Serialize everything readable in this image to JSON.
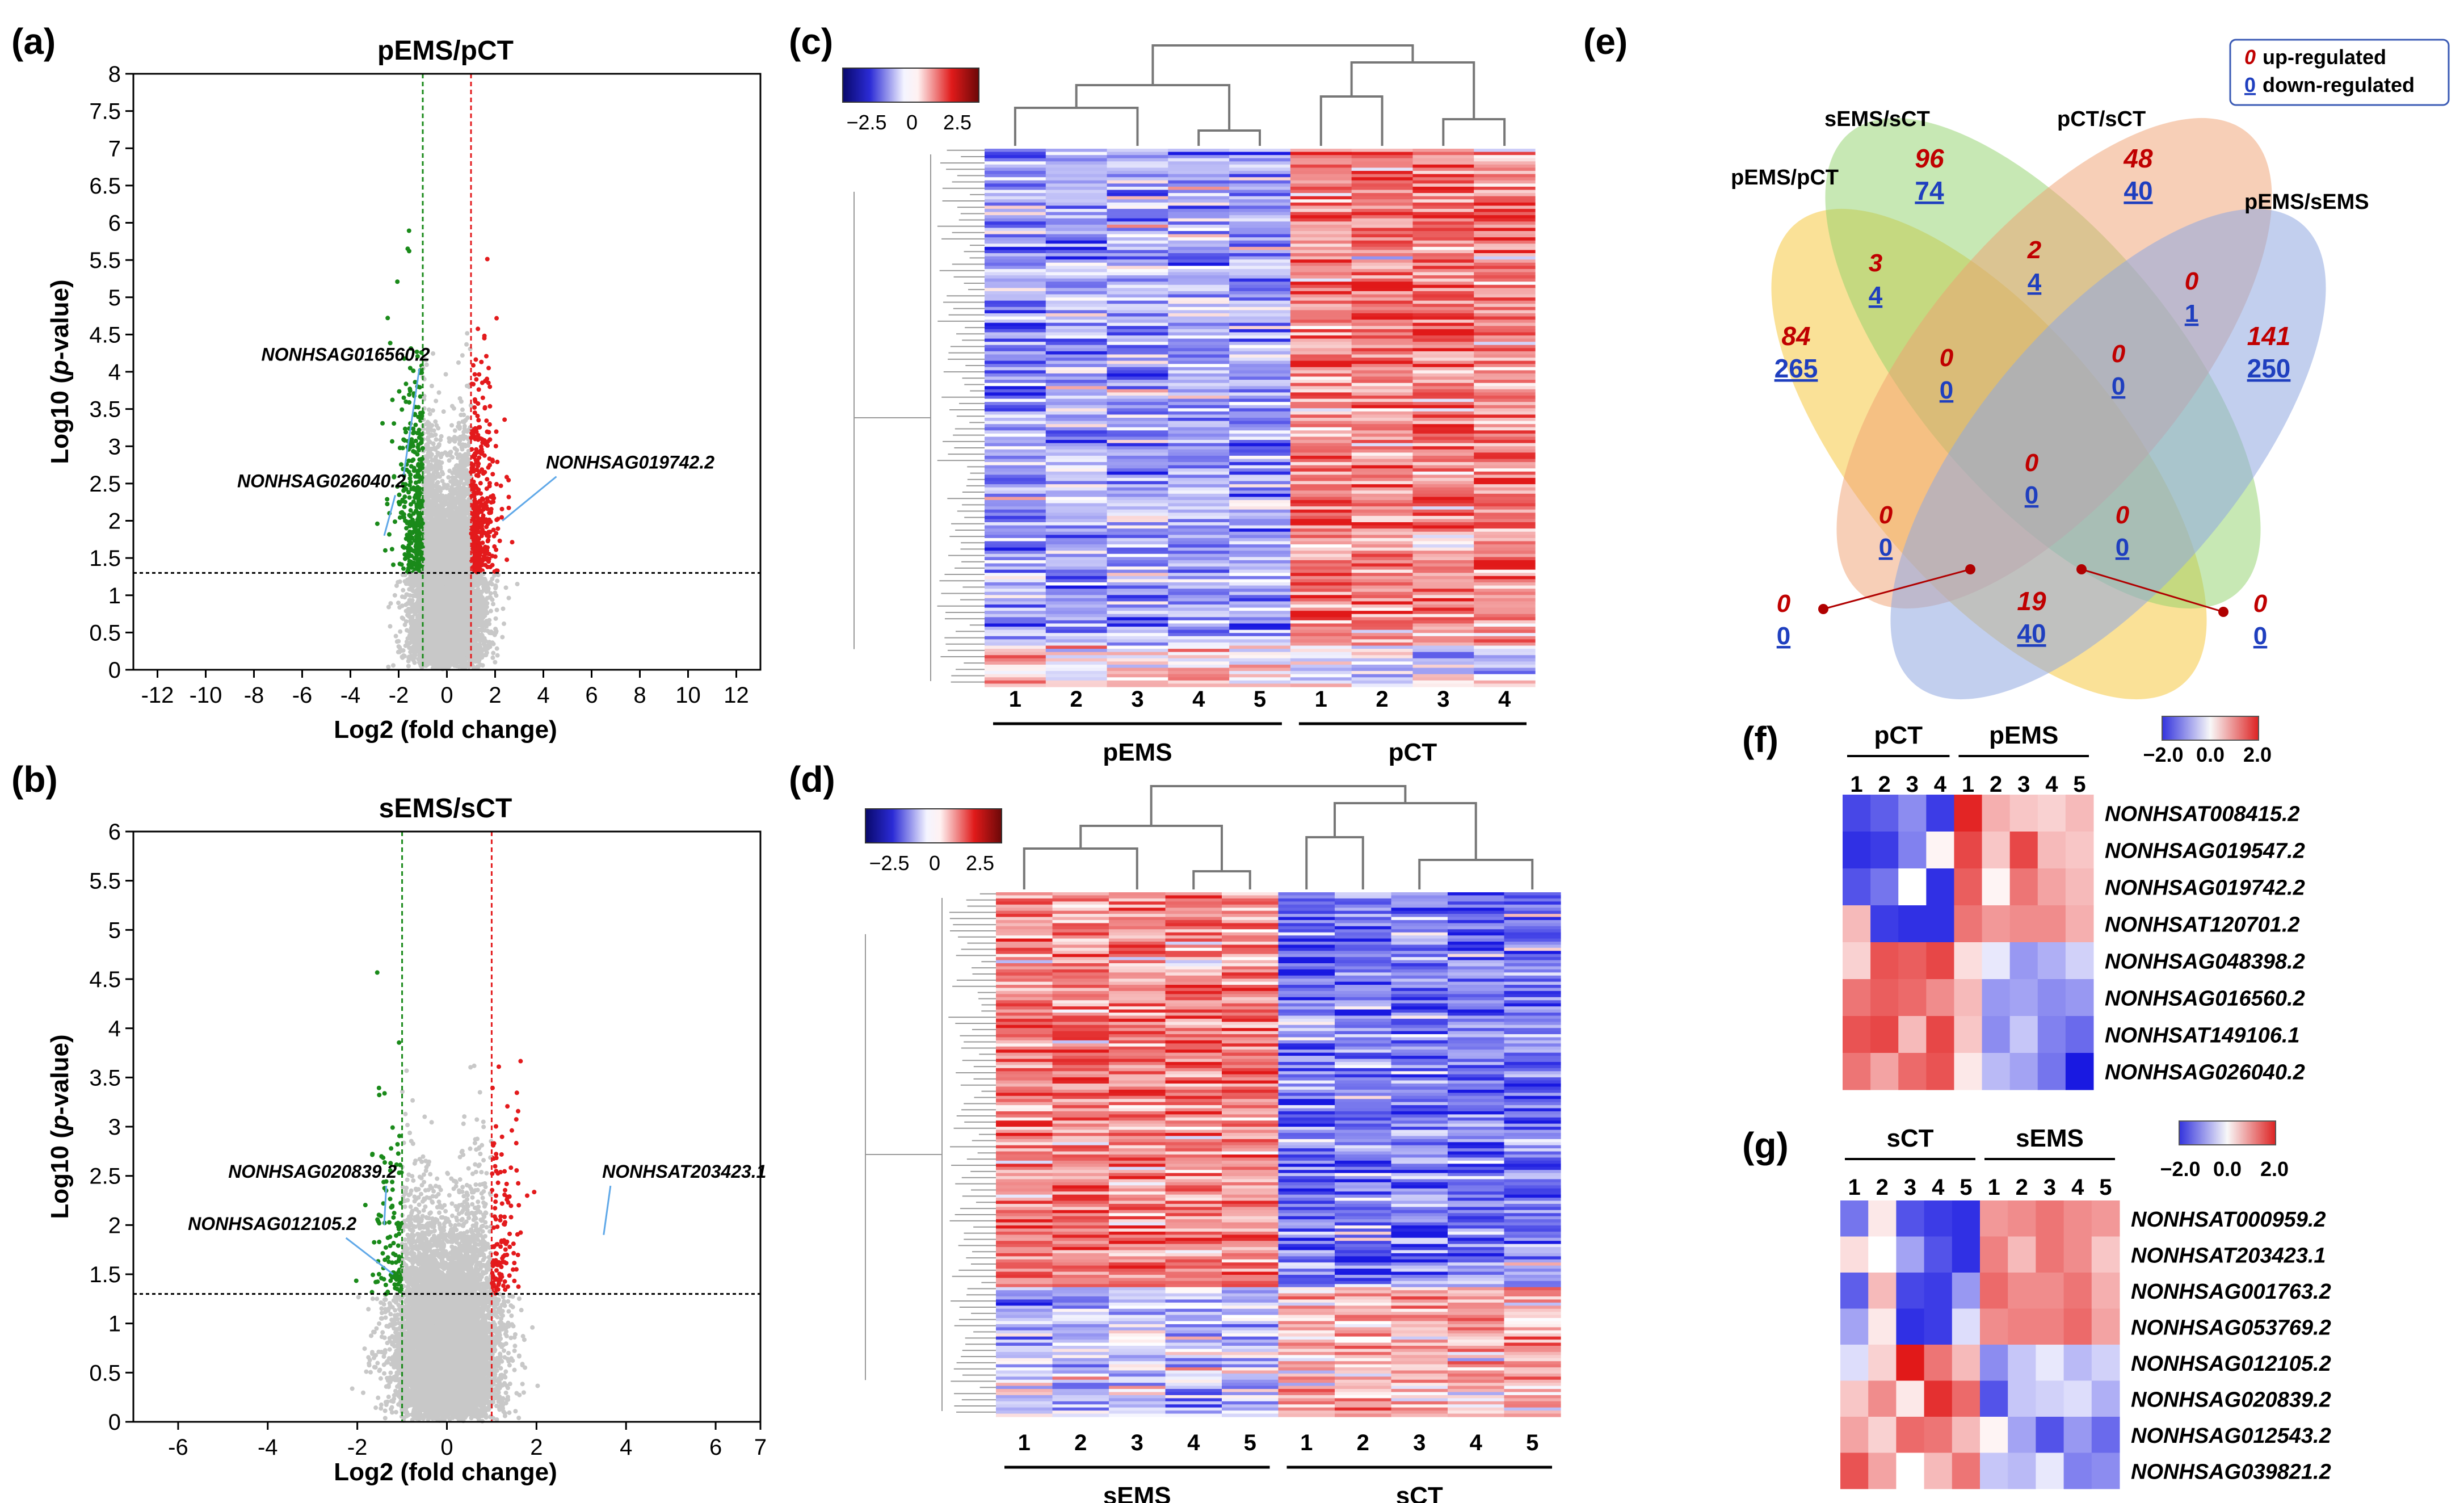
{
  "panels": {
    "a": {
      "label": "(a)"
    },
    "b": {
      "label": "(b)"
    },
    "c": {
      "label": "(c)"
    },
    "d": {
      "label": "(d)"
    },
    "e": {
      "label": "(e)"
    },
    "f": {
      "label": "(f)"
    },
    "g": {
      "label": "(g)"
    }
  },
  "chart_data": [
    {
      "panel": "a",
      "type": "scatter",
      "title": "pEMS/pCT",
      "xlabel": "Log2 (fold change)",
      "ylabel_prefix": "Log10 (",
      "ylabel_italic": "p",
      "ylabel_suffix": "-value)",
      "xlim": [
        -13,
        13
      ],
      "ylim": [
        0,
        8
      ],
      "xticks": [
        -12,
        -10,
        -8,
        -6,
        -4,
        -2,
        0,
        2,
        4,
        6,
        8,
        10,
        12
      ],
      "yticks": [
        0,
        0.5,
        1,
        1.5,
        2,
        2.5,
        3,
        3.5,
        4,
        4.5,
        5,
        5.5,
        6,
        6.5,
        7,
        7.5,
        8
      ],
      "fc_cutoffs": [
        -1,
        1
      ],
      "p_cutoff": 1.3,
      "colors": {
        "down": "#1a8a1a",
        "up": "#e31a1c",
        "ns": "#c8c8c8"
      },
      "annotations": [
        {
          "text": "NONHSAG016560.2",
          "x": -4.2,
          "y": 4.15,
          "px": -1.8,
          "py": 2.6
        },
        {
          "text": "NONHSAG026040.2",
          "x": -5.2,
          "y": 2.45,
          "px": -2.6,
          "py": 1.8
        },
        {
          "text": "NONHSAG019742.2",
          "x": 7.6,
          "y": 2.7,
          "px": 2.3,
          "py": 2.0
        }
      ]
    },
    {
      "panel": "b",
      "type": "scatter",
      "title": "sEMS/sCT",
      "xlabel": "Log2 (fold change)",
      "ylabel_prefix": "Log10 (",
      "ylabel_italic": "p",
      "ylabel_suffix": "-value)",
      "xlim": [
        -7,
        7
      ],
      "ylim": [
        0,
        6
      ],
      "xticks": [
        -6,
        -4,
        -2,
        0,
        2,
        4,
        6,
        7
      ],
      "yticks": [
        0,
        0.5,
        1,
        1.5,
        2,
        2.5,
        3,
        3.5,
        4,
        4.5,
        5,
        5.5,
        6
      ],
      "fc_cutoffs": [
        -1,
        1
      ],
      "p_cutoff": 1.3,
      "colors": {
        "down": "#1a8a1a",
        "up": "#e31a1c",
        "ns": "#c8c8c8"
      },
      "annotations": [
        {
          "text": "NONHSAG020839.2",
          "x": -3.0,
          "y": 2.48,
          "px": -1.4,
          "py": 2.0
        },
        {
          "text": "NONHSAG012105.2",
          "x": -3.9,
          "y": 1.95,
          "px": -1.2,
          "py": 1.5
        },
        {
          "text": "NONHSAT203423.1",
          "x": 5.3,
          "y": 2.48,
          "px": 3.5,
          "py": 1.9
        }
      ]
    },
    {
      "panel": "c",
      "type": "heatmap",
      "legend_ticks": [
        "−2.5",
        "0",
        "2.5"
      ],
      "groups": [
        {
          "name": "pEMS",
          "columns": [
            "1",
            "2",
            "3",
            "4",
            "5"
          ]
        },
        {
          "name": "pCT",
          "columns": [
            "1",
            "2",
            "3",
            "4"
          ]
        }
      ]
    },
    {
      "panel": "d",
      "type": "heatmap",
      "legend_ticks": [
        "−2.5",
        "0",
        "2.5"
      ],
      "groups": [
        {
          "name": "sEMS",
          "columns": [
            "1",
            "2",
            "3",
            "4",
            "5"
          ]
        },
        {
          "name": "sCT",
          "columns": [
            "1",
            "2",
            "3",
            "4",
            "5"
          ]
        }
      ]
    },
    {
      "panel": "e",
      "type": "venn",
      "legend": {
        "up": "up-regulated",
        "down": "down-regulated",
        "up_num": "0",
        "down_num": "0"
      },
      "sets": [
        "pEMS/pCT",
        "sEMS/sCT",
        "pCT/sCT",
        "pEMS/sEMS"
      ],
      "regions": [
        {
          "sets": "A",
          "up": 84,
          "down": 265
        },
        {
          "sets": "B",
          "up": 96,
          "down": 74
        },
        {
          "sets": "C",
          "up": 48,
          "down": 40
        },
        {
          "sets": "D",
          "up": 141,
          "down": 250
        },
        {
          "sets": "AB",
          "up": 3,
          "down": 4
        },
        {
          "sets": "BC",
          "up": 2,
          "down": 4
        },
        {
          "sets": "CD",
          "up": 0,
          "down": 1
        },
        {
          "sets": "ABC",
          "up": 0,
          "down": 0
        },
        {
          "sets": "BCD",
          "up": 0,
          "down": 0
        },
        {
          "sets": "ABCD",
          "up": 0,
          "down": 0
        },
        {
          "sets": "ACD",
          "up": 0,
          "down": 0
        },
        {
          "sets": "ABD",
          "up": 0,
          "down": 0
        },
        {
          "sets": "AD",
          "up": 19,
          "down": 40
        },
        {
          "sets": "AC",
          "up": 0,
          "down": 0
        },
        {
          "sets": "BD",
          "up": 0,
          "down": 0
        }
      ]
    },
    {
      "panel": "f",
      "type": "heatmap",
      "legend_ticks": [
        "−2.0",
        "0.0",
        "2.0"
      ],
      "groups": [
        {
          "name": "pCT",
          "columns": [
            "1",
            "2",
            "3",
            "4"
          ]
        },
        {
          "name": "pEMS",
          "columns": [
            "1",
            "2",
            "3",
            "4",
            "5"
          ]
        }
      ],
      "rows": [
        "NONHSAT008415.2",
        "NONHSAG019547.2",
        "NONHSAG019742.2",
        "NONHSAT120701.2",
        "NONHSAG048398.2",
        "NONHSAG016560.2",
        "NONHSAT149106.1",
        "NONHSAG026040.2"
      ],
      "values": [
        [
          -1.6,
          -1.4,
          -1.0,
          -1.7,
          1.9,
          0.7,
          0.5,
          0.4,
          0.6
        ],
        [
          -1.8,
          -1.7,
          -1.1,
          0.1,
          1.6,
          0.5,
          1.6,
          0.6,
          0.5
        ],
        [
          -1.5,
          -1.2,
          0.0,
          -1.8,
          1.4,
          0.1,
          1.2,
          0.8,
          0.6
        ],
        [
          0.6,
          -1.7,
          -1.8,
          -1.8,
          1.2,
          0.9,
          1.0,
          1.0,
          0.7
        ],
        [
          0.4,
          1.5,
          1.4,
          1.6,
          0.3,
          -0.2,
          -0.9,
          -0.7,
          -0.4
        ],
        [
          1.2,
          1.4,
          1.3,
          1.0,
          0.6,
          -0.9,
          -0.8,
          -1.0,
          -0.9
        ],
        [
          1.5,
          1.6,
          0.6,
          1.6,
          0.5,
          -1.0,
          -0.5,
          -1.1,
          -1.3
        ],
        [
          1.2,
          0.8,
          1.3,
          1.5,
          0.2,
          -0.6,
          -0.8,
          -1.2,
          -2.0
        ]
      ]
    },
    {
      "panel": "g",
      "type": "heatmap",
      "legend_ticks": [
        "−2.0",
        "0.0",
        "2.0"
      ],
      "groups": [
        {
          "name": "sCT",
          "columns": [
            "1",
            "2",
            "3",
            "4",
            "5"
          ]
        },
        {
          "name": "sEMS",
          "columns": [
            "1",
            "2",
            "3",
            "4",
            "5"
          ]
        }
      ],
      "rows": [
        "NONHSAT000959.2",
        "NONHSAT203423.1",
        "NONHSAG001763.2",
        "NONHSAG053769.2",
        "NONHSAG012105.2",
        "NONHSAG020839.2",
        "NONHSAG012543.2",
        "NONHSAG039821.2"
      ],
      "values": [
        [
          -1.2,
          0.2,
          -1.5,
          -1.7,
          -1.8,
          0.9,
          1.0,
          1.2,
          1.0,
          0.9
        ],
        [
          0.3,
          0.0,
          -0.8,
          -1.5,
          -1.8,
          1.1,
          0.6,
          1.2,
          1.0,
          0.5
        ],
        [
          -1.4,
          0.6,
          -1.6,
          -1.7,
          -0.9,
          1.3,
          1.0,
          1.0,
          1.2,
          0.7
        ],
        [
          -0.8,
          0.2,
          -1.8,
          -1.7,
          -0.3,
          1.0,
          1.1,
          1.1,
          1.3,
          0.8
        ],
        [
          -0.3,
          0.4,
          2.0,
          1.2,
          0.6,
          -1.0,
          -0.5,
          -0.2,
          -0.6,
          -0.4
        ],
        [
          0.5,
          1.0,
          0.2,
          1.8,
          1.3,
          -1.5,
          -0.5,
          -0.4,
          -0.3,
          -0.7
        ],
        [
          0.8,
          0.4,
          1.3,
          1.2,
          0.6,
          0.1,
          -0.8,
          -1.5,
          -0.9,
          -1.3
        ],
        [
          1.5,
          0.8,
          0.0,
          0.6,
          1.2,
          -0.5,
          -0.6,
          -0.2,
          -1.1,
          -1.0
        ]
      ]
    }
  ]
}
